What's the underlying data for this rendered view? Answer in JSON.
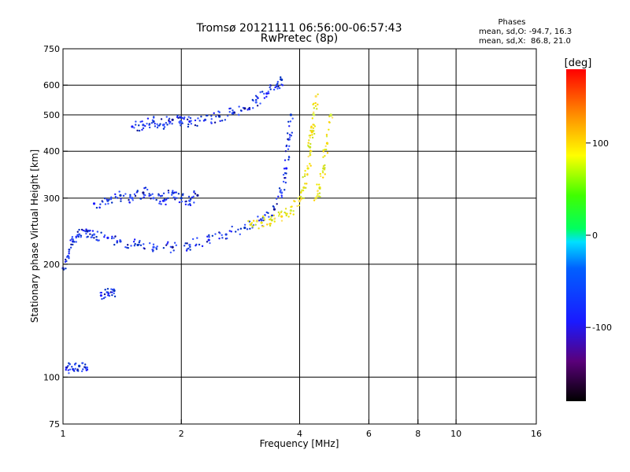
{
  "chart_data": {
    "type": "scatter",
    "title_line1": "Tromsø 20121111 06:56:00-06:57:43",
    "title_line2": "RwPretec (8p)",
    "xlabel": "Frequency [MHz]",
    "ylabel": "Stationary phase Virtual Height [km]",
    "x_scale": "log",
    "y_scale": "log",
    "xlim": [
      1,
      16
    ],
    "ylim": [
      75,
      750
    ],
    "x_ticks": [
      1,
      2,
      4,
      6,
      8,
      10,
      16
    ],
    "x_tick_labels": [
      "1",
      "2",
      "4",
      "6",
      "8",
      "10",
      "16"
    ],
    "x_gridlines": [
      2,
      4,
      6,
      8,
      10
    ],
    "y_ticks": [
      75,
      100,
      200,
      300,
      400,
      500,
      600,
      750
    ],
    "y_tick_labels": [
      "75",
      "100",
      "200",
      "300",
      "400",
      "500",
      "600",
      "750"
    ],
    "y_gridlines": [
      100,
      200,
      300,
      400,
      500,
      600
    ],
    "grid": true,
    "phase_stats": {
      "title": "Phases",
      "line_o": "mean, sd,O: -94.7, 16.3",
      "line_x": "mean, sd,X:  86.8, 21.0"
    },
    "colorbar": {
      "label": "[deg]",
      "range": [
        -180,
        180
      ],
      "ticks": [
        100,
        0,
        -100
      ],
      "tick_labels": [
        "100",
        "0",
        "-100"
      ]
    },
    "series": [
      {
        "mode": "O",
        "phase_mean": -94.7,
        "color_hint": "#2040e0",
        "traces": [
          {
            "x": [
              1.0,
              1.03,
              1.06,
              1.1,
              1.15,
              1.2,
              1.3,
              1.4,
              1.55,
              1.7,
              1.9,
              2.1,
              2.35,
              2.6,
              2.9,
              3.2,
              3.45,
              3.6,
              3.7,
              3.75,
              3.8
            ],
            "y": [
              195,
              210,
              230,
              240,
              245,
              240,
              235,
              230,
              225,
              222,
              222,
              225,
              232,
              240,
              250,
              262,
              280,
              310,
              360,
              430,
              500
            ]
          },
          {
            "x": [
              1.2,
              1.3,
              1.4,
              1.5,
              1.6,
              1.7,
              1.8,
              1.9,
              2.0,
              2.1,
              2.2
            ],
            "y": [
              290,
              295,
              305,
              300,
              310,
              300,
              295,
              310,
              300,
              295,
              305
            ]
          },
          {
            "x": [
              1.5,
              1.6,
              1.7,
              1.8,
              1.9,
              2.0,
              2.1,
              2.3,
              2.5,
              2.7,
              2.9,
              3.1,
              3.3,
              3.5,
              3.6
            ],
            "y": [
              465,
              470,
              480,
              470,
              485,
              478,
              480,
              485,
              495,
              505,
              520,
              540,
              570,
              600,
              620
            ]
          },
          {
            "x": [
              1.02,
              1.06,
              1.1,
              1.15
            ],
            "y": [
              106,
              105,
              107,
              106
            ]
          },
          {
            "x": [
              1.25,
              1.3,
              1.35
            ],
            "y": [
              165,
              168,
              170
            ]
          }
        ]
      },
      {
        "mode": "X",
        "phase_mean": 86.8,
        "color_hint": "#f0e020",
        "traces": [
          {
            "x": [
              3.0,
              3.2,
              3.4,
              3.6,
              3.8,
              4.0,
              4.1,
              4.2,
              4.25,
              4.3,
              4.35,
              4.4
            ],
            "y": [
              255,
              258,
              262,
              268,
              278,
              295,
              320,
              360,
              410,
              450,
              500,
              560
            ]
          },
          {
            "x": [
              4.4,
              4.5,
              4.6,
              4.7,
              4.8
            ],
            "y": [
              300,
              320,
              360,
              420,
              500
            ]
          }
        ]
      }
    ]
  }
}
